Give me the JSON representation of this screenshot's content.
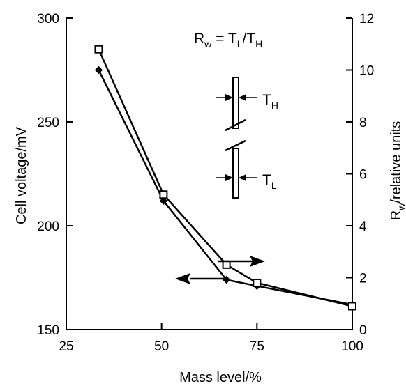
{
  "chart_data": {
    "type": "line",
    "title": "",
    "xlabel": "Mass level/%",
    "ylabel_left": "Cell voltage/mV",
    "ylabel_right_main": "R",
    "ylabel_right_sub": "w",
    "ylabel_right_rest": "/relative units",
    "xlim": [
      25,
      100
    ],
    "ylim_left": [
      150,
      300
    ],
    "ylim_right": [
      0,
      12
    ],
    "x_ticks": [
      25,
      50,
      75,
      100
    ],
    "y_left_ticks": [
      150,
      200,
      250,
      300
    ],
    "y_right_ticks": [
      0,
      2,
      4,
      6,
      8,
      10,
      12
    ],
    "grid": false,
    "series": [
      {
        "axis": "left",
        "marker": "filled-diamond",
        "x": [
          33.5,
          50.5,
          67,
          75,
          100
        ],
        "y": [
          275,
          212,
          174,
          171,
          162
        ]
      },
      {
        "axis": "right",
        "marker": "open-square",
        "x": [
          33.5,
          50.5,
          67,
          75,
          100
        ],
        "y": [
          10.8,
          5.2,
          2.5,
          1.8,
          0.9
        ]
      }
    ],
    "annotations": {
      "formula": {
        "lhs_main": "R",
        "lhs_sub": "w",
        "eq": " = ",
        "t1_main": "T",
        "t1_sub": "L",
        "slash": "/",
        "t2_main": "T",
        "t2_sub": "H"
      },
      "th_label": {
        "main": "T",
        "sub": "H"
      },
      "tl_label": {
        "main": "T",
        "sub": "L"
      }
    },
    "colors": {
      "line": "#000000",
      "background": "#ffffff"
    }
  }
}
